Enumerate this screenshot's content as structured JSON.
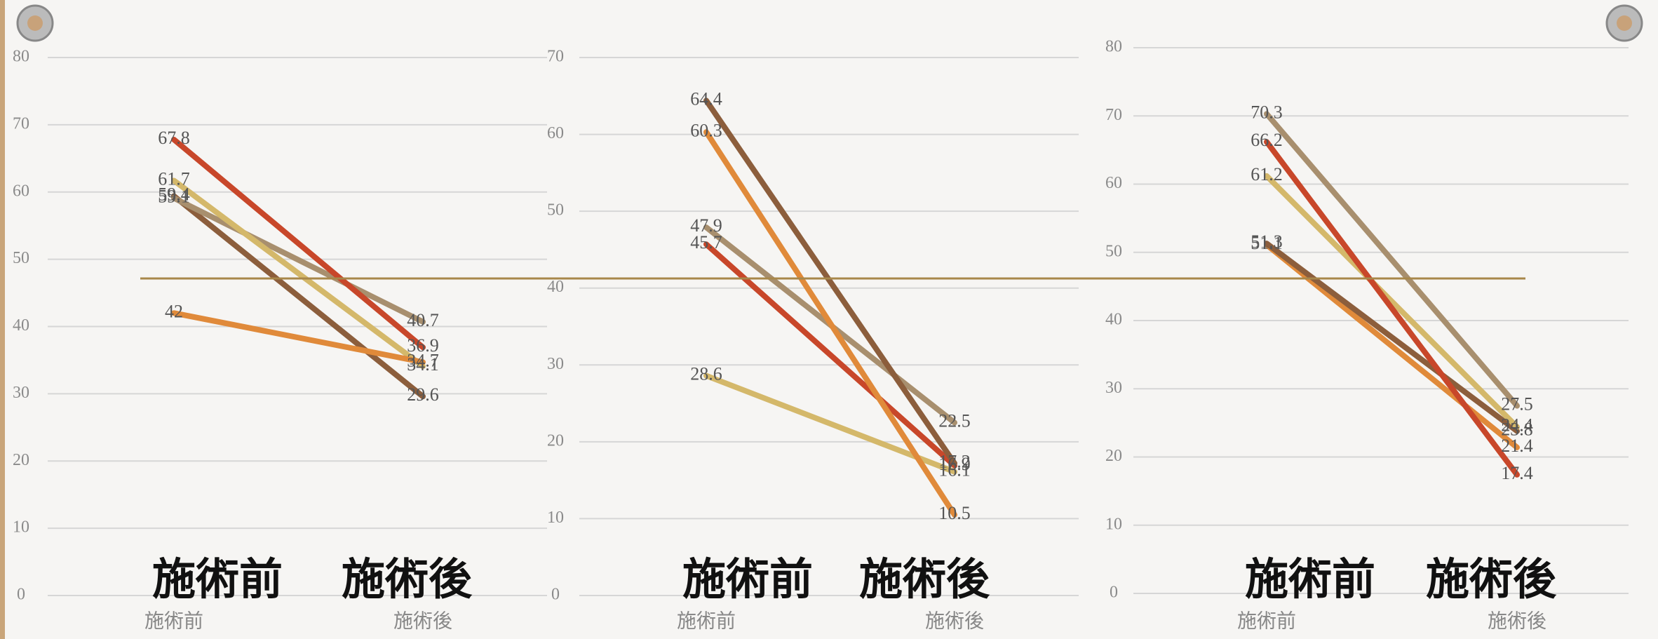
{
  "chart_data": [
    {
      "type": "line",
      "categories": [
        "施術前",
        "施術後"
      ],
      "captions": [
        "施術前",
        "施術後"
      ],
      "ylim": [
        0,
        80
      ],
      "yticks": [
        0,
        10,
        20,
        30,
        40,
        50,
        60,
        70,
        80
      ],
      "grid": true,
      "series": [
        {
          "color": "#8c5e3c",
          "values": [
            59.4,
            29.6
          ]
        },
        {
          "color": "#a88f6e",
          "values": [
            59.1,
            40.7
          ]
        },
        {
          "color": "#d4b86a",
          "values": [
            61.7,
            34.1
          ]
        },
        {
          "color": "#e08a3a",
          "values": [
            42,
            34.7
          ]
        },
        {
          "color": "#c8472a",
          "values": [
            67.8,
            36.9
          ]
        }
      ]
    },
    {
      "type": "line",
      "categories": [
        "施術前",
        "施術後"
      ],
      "captions": [
        "施術前",
        "施術後"
      ],
      "ylim": [
        0,
        70
      ],
      "yticks": [
        0,
        10,
        20,
        30,
        40,
        50,
        60,
        70
      ],
      "grid": true,
      "series": [
        {
          "color": "#d4b86a",
          "values": [
            28.6,
            16.1
          ]
        },
        {
          "color": "#a88f6e",
          "values": [
            47.9,
            22.5
          ]
        },
        {
          "color": "#c8472a",
          "values": [
            45.7,
            16.9
          ]
        },
        {
          "color": "#e08a3a",
          "values": [
            60.3,
            10.5
          ]
        },
        {
          "color": "#8c5e3c",
          "values": [
            64.4,
            17.2
          ]
        }
      ]
    },
    {
      "type": "line",
      "categories": [
        "施術前",
        "施術後"
      ],
      "captions": [
        "施術前",
        "施術後"
      ],
      "ylim": [
        0,
        80
      ],
      "yticks": [
        0,
        10,
        20,
        30,
        40,
        50,
        60,
        70,
        80
      ],
      "grid": true,
      "series": [
        {
          "color": "#e08a3a",
          "values": [
            51.1,
            21.4
          ]
        },
        {
          "color": "#8c5e3c",
          "values": [
            51.3,
            23.8
          ]
        },
        {
          "color": "#d4b86a",
          "values": [
            61.2,
            24.4
          ]
        },
        {
          "color": "#c8472a",
          "values": [
            66.2,
            17.4
          ]
        },
        {
          "color": "#a88f6e",
          "values": [
            70.3,
            27.5
          ]
        }
      ]
    }
  ]
}
